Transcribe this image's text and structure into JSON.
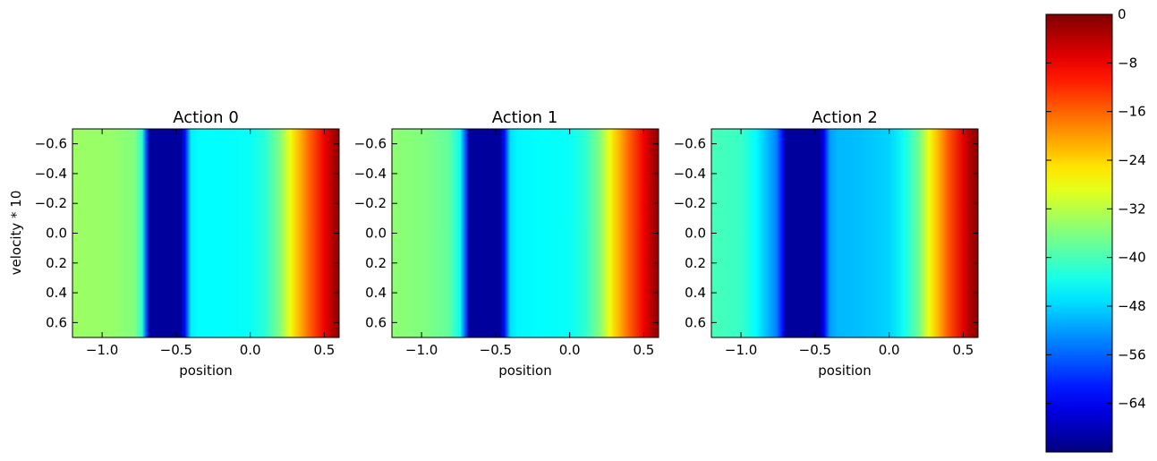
{
  "chart_data": [
    {
      "type": "heatmap",
      "title": "Action 0",
      "xlabel": "position",
      "ylabel": "velocity * 10",
      "xlim": [
        -1.2,
        0.6
      ],
      "ylim": [
        0.7,
        -0.7
      ],
      "xticks": [
        "−1.0",
        "−0.5",
        "0.0",
        "0.5"
      ],
      "yticks": [
        "−0.6",
        "−0.4",
        "−0.2",
        "0.0",
        "0.2",
        "0.4",
        "0.6"
      ],
      "profile_x": [
        -1.2,
        -0.92,
        -0.78,
        -0.73,
        -0.7,
        -0.68,
        -0.55,
        -0.47,
        -0.44,
        -0.4,
        -0.35,
        -0.2,
        0.0,
        0.1,
        0.2,
        0.27,
        0.33,
        0.4,
        0.5,
        0.55,
        0.6
      ],
      "profile_value": [
        -34,
        -34.5,
        -36,
        -42,
        -58,
        -70,
        -70,
        -70,
        -62,
        -46,
        -45,
        -45,
        -44.5,
        -42,
        -36,
        -28,
        -22,
        -16,
        -8,
        -4,
        -1
      ]
    },
    {
      "type": "heatmap",
      "title": "Action 1",
      "xlabel": "position",
      "ylabel": "",
      "xlim": [
        -1.2,
        0.6
      ],
      "ylim": [
        0.7,
        -0.7
      ],
      "xticks": [
        "−1.0",
        "−0.5",
        "0.0",
        "0.5"
      ],
      "yticks": [
        "−0.6",
        "−0.4",
        "−0.2",
        "0.0",
        "0.2",
        "0.4",
        "0.6"
      ],
      "profile_x": [
        -1.2,
        -0.98,
        -0.82,
        -0.74,
        -0.7,
        -0.68,
        -0.55,
        -0.47,
        -0.44,
        -0.4,
        -0.35,
        -0.2,
        0.0,
        0.1,
        0.2,
        0.27,
        0.33,
        0.4,
        0.5,
        0.55,
        0.6
      ],
      "profile_value": [
        -35,
        -36,
        -38,
        -44,
        -58,
        -70,
        -70,
        -70,
        -62,
        -47,
        -45.5,
        -45,
        -44.5,
        -42,
        -36,
        -28,
        -22,
        -16,
        -8,
        -4,
        -1
      ]
    },
    {
      "type": "heatmap",
      "title": "Action 2",
      "xlabel": "position",
      "ylabel": "",
      "xlim": [
        -1.2,
        0.6
      ],
      "ylim": [
        0.7,
        -0.7
      ],
      "xticks": [
        "−1.0",
        "−0.5",
        "0.0",
        "0.5"
      ],
      "yticks": [
        "−0.6",
        "−0.4",
        "−0.2",
        "0.0",
        "0.2",
        "0.4",
        "0.6"
      ],
      "profile_x": [
        -1.2,
        -1.0,
        -0.9,
        -0.82,
        -0.76,
        -0.72,
        -0.7,
        -0.55,
        -0.47,
        -0.44,
        -0.4,
        -0.35,
        -0.2,
        0.0,
        0.1,
        0.2,
        0.27,
        0.33,
        0.4,
        0.5,
        0.55,
        0.6
      ],
      "profile_value": [
        -40,
        -41,
        -45,
        -50,
        -54,
        -62,
        -70,
        -70,
        -70,
        -63,
        -52,
        -50,
        -49.5,
        -48,
        -44,
        -37,
        -28,
        -22,
        -15,
        -7,
        -3,
        -1
      ]
    }
  ],
  "colorbar": {
    "colormap": "jet",
    "vmin": -72,
    "vmax": 0,
    "ticks": [
      0,
      -8,
      -16,
      -24,
      -32,
      -40,
      -48,
      -56,
      -64
    ],
    "tick_labels": [
      "0",
      "−8",
      "−16",
      "−24",
      "−32",
      "−40",
      "−48",
      "−56",
      "−64"
    ]
  }
}
